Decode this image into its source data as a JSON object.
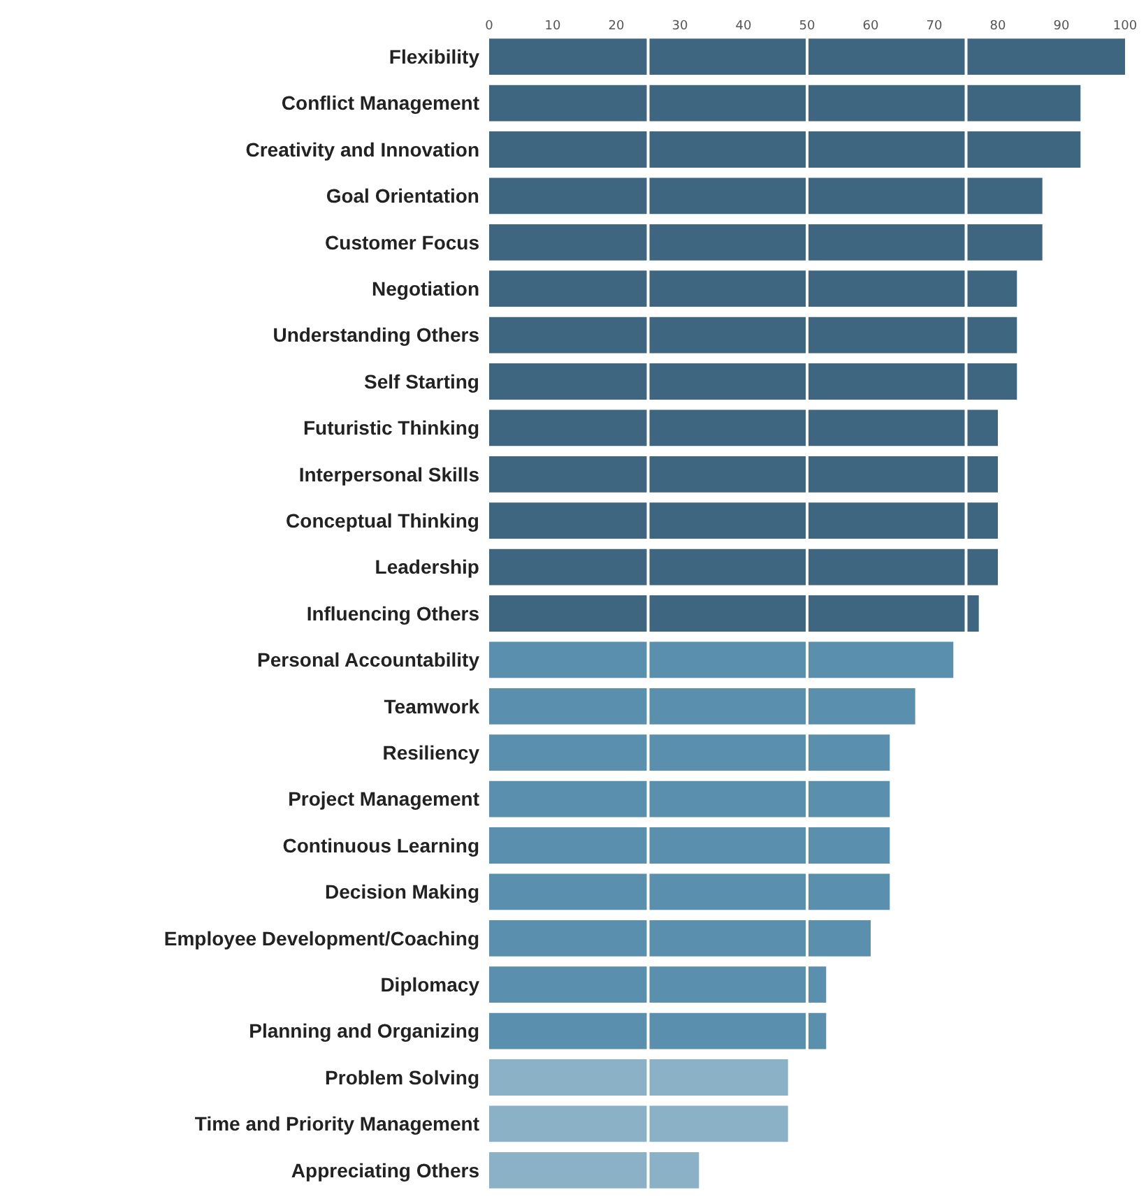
{
  "chart_data": {
    "type": "bar",
    "orientation": "horizontal",
    "categories": [
      "Flexibility",
      "Conflict Management",
      "Creativity and Innovation",
      "Goal Orientation",
      "Customer Focus",
      "Negotiation",
      "Understanding Others",
      "Self Starting",
      "Futuristic Thinking",
      "Interpersonal Skills",
      "Conceptual Thinking",
      "Leadership",
      "Influencing Others",
      "Personal Accountability",
      "Teamwork",
      "Resiliency",
      "Project Management",
      "Continuous Learning",
      "Decision Making",
      "Employee Development/Coaching",
      "Diplomacy",
      "Planning and Organizing",
      "Problem Solving",
      "Time and Priority Management",
      "Appreciating Others"
    ],
    "values": [
      100,
      93,
      93,
      87,
      87,
      83,
      83,
      83,
      80,
      80,
      80,
      80,
      77,
      73,
      67,
      63,
      63,
      63,
      63,
      60,
      53,
      53,
      47,
      47,
      33
    ],
    "colors": [
      "#3e6680",
      "#3e6680",
      "#3e6680",
      "#3e6680",
      "#3e6680",
      "#3e6680",
      "#3e6680",
      "#3e6680",
      "#3e6680",
      "#3e6680",
      "#3e6680",
      "#3e6680",
      "#3e6680",
      "#5b8fae",
      "#5b8fae",
      "#5b8fae",
      "#5b8fae",
      "#5b8fae",
      "#5b8fae",
      "#5b8fae",
      "#5b8fae",
      "#5b8fae",
      "#8ab1c6",
      "#8ab1c6",
      "#8ab1c6"
    ],
    "xlim": [
      0,
      100
    ],
    "xticks": [
      0,
      10,
      20,
      30,
      40,
      50,
      60,
      70,
      80,
      90,
      100
    ],
    "ref_lines": [
      {
        "axis": "x",
        "value": 25,
        "color": "#ffffff"
      },
      {
        "axis": "x",
        "value": 50,
        "color": "#ffffff"
      },
      {
        "axis": "x",
        "value": 75,
        "color": "#ffffff"
      }
    ],
    "grid": false,
    "legend": false
  }
}
